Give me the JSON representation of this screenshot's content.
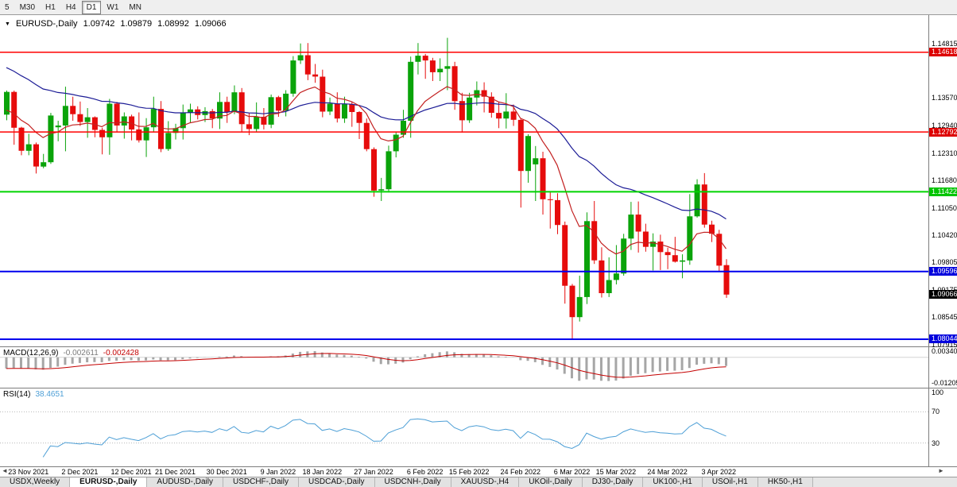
{
  "colors": {
    "bull": "#0aa30a",
    "bear": "#e60c0c",
    "ma_fast": "#c32222",
    "ma_slow": "#1c1c96",
    "macd_hist": "#a6a6a6",
    "macd_signal": "#c40000",
    "rsi_line": "#4d9fd6",
    "hline_red": "#ff0000",
    "hline_green": "#00d400",
    "hline_blue": "#0000ee",
    "current_price_bg": "#000000"
  },
  "toolbar": {
    "buttons": [
      {
        "label": "5",
        "active": false
      },
      {
        "label": "M30",
        "active": false
      },
      {
        "label": "H1",
        "active": false
      },
      {
        "label": "H4",
        "active": false
      },
      {
        "label": "D1",
        "active": true
      },
      {
        "label": "W1",
        "active": false
      },
      {
        "label": "MN",
        "active": false
      }
    ]
  },
  "chart_header": {
    "collapse_icon": "▼",
    "symbol_label": "EURUSD-,Daily",
    "open": "1.09742",
    "high": "1.09879",
    "low": "1.08992",
    "close": "1.09066"
  },
  "price_axis": {
    "ticks": [
      "1.14815",
      "1.13570",
      "1.12940",
      "1.12310",
      "1.11680",
      "1.11050",
      "1.10420",
      "1.09805",
      "1.09175",
      "1.08545",
      "1.07915"
    ],
    "line_labels": [
      {
        "text": "1.14618",
        "bg": "#dd0000"
      },
      {
        "text": "1.12792",
        "bg": "#dd0000"
      },
      {
        "text": "1.11422",
        "bg": "#00c400"
      },
      {
        "text": "1.09596",
        "bg": "#0000dd"
      },
      {
        "text": "1.09066",
        "bg": "#000000"
      },
      {
        "text": "1.08044",
        "bg": "#0000dd"
      }
    ]
  },
  "indicators": {
    "macd": {
      "label": "MACD(12,26,9)",
      "value_main": "-0.002611",
      "value_signal": "-0.002428",
      "axis": [
        "0.00340",
        "-0.01205"
      ]
    },
    "rsi": {
      "label": "RSI(14)",
      "value": "38.4651",
      "axis": [
        "100",
        "70",
        "30"
      ]
    }
  },
  "date_axis": {
    "labels": [
      {
        "text": "23 Nov 2021",
        "i": 3
      },
      {
        "text": "2 Dec 2021",
        "i": 10
      },
      {
        "text": "12 Dec 2021",
        "i": 17
      },
      {
        "text": "21 Dec 2021",
        "i": 23
      },
      {
        "text": "30 Dec 2021",
        "i": 30
      },
      {
        "text": "9 Jan 2022",
        "i": 37
      },
      {
        "text": "18 Jan 2022",
        "i": 43
      },
      {
        "text": "27 Jan 2022",
        "i": 50
      },
      {
        "text": "6 Feb 2022",
        "i": 57
      },
      {
        "text": "15 Feb 2022",
        "i": 63
      },
      {
        "text": "24 Feb 2022",
        "i": 70
      },
      {
        "text": "6 Mar 2022",
        "i": 77
      },
      {
        "text": "15 Mar 2022",
        "i": 83
      },
      {
        "text": "24 Mar 2022",
        "i": 90
      },
      {
        "text": "3 Apr 2022",
        "i": 97
      }
    ],
    "scroll_left": "◄",
    "scroll_right": "►"
  },
  "tabs": [
    {
      "label": "USDX,Weekly",
      "active": false
    },
    {
      "label": "EURUSD-,Daily",
      "active": true
    },
    {
      "label": "AUDUSD-,Daily",
      "active": false
    },
    {
      "label": "USDCHF-,Daily",
      "active": false
    },
    {
      "label": "USDCAD-,Daily",
      "active": false
    },
    {
      "label": "USDCNH-,Daily",
      "active": false
    },
    {
      "label": "XAUUSD-,H4",
      "active": false
    },
    {
      "label": "UKOil-,Daily",
      "active": false
    },
    {
      "label": "DJ30-,Daily",
      "active": false
    },
    {
      "label": "UK100-,H1",
      "active": false
    },
    {
      "label": "USOil-,H1",
      "active": false
    },
    {
      "label": "HK50-,H1",
      "active": false
    }
  ],
  "chart_data": {
    "type": "candlestick",
    "symbol": "EURUSD",
    "timeframe": "Daily",
    "title": "EURUSD-,Daily  1.09742 1.09879 1.08992 1.09066",
    "y_range": [
      1.0788,
      1.1547
    ],
    "x_start": 8,
    "x_spacing": 9.24,
    "current_price": 1.09066,
    "hlines": [
      {
        "price": 1.14618,
        "color": "#ff0000",
        "width": 1.5
      },
      {
        "price": 1.12792,
        "color": "#ff0000",
        "width": 1.5
      },
      {
        "price": 1.11422,
        "color": "#00d400",
        "width": 2
      },
      {
        "price": 1.09596,
        "color": "#0000ee",
        "width": 2
      },
      {
        "price": 1.08044,
        "color": "#0000ee",
        "width": 2
      }
    ],
    "ma": {
      "fast": {
        "type": "EMA",
        "period": 10,
        "seed": 1.132
      },
      "slow": {
        "type": "EMA",
        "period": 34,
        "seed": 1.143
      }
    },
    "macd": {
      "fast": 12,
      "slow": 26,
      "signal": 9,
      "range": [
        -0.0135,
        0.0045
      ],
      "seed_fast": 1.13,
      "seed_slow": 1.136,
      "last_main": -0.002611,
      "last_signal": -0.002428
    },
    "rsi": {
      "period": 14,
      "range": [
        0,
        100
      ],
      "levels": [
        70,
        30
      ],
      "last": 38.4651
    },
    "ohlc": [
      [
        1.1319,
        1.1374,
        1.1306,
        1.1371
      ],
      [
        1.1371,
        1.1374,
        1.125,
        1.1289
      ],
      [
        1.1289,
        1.1291,
        1.1226,
        1.1236
      ],
      [
        1.1236,
        1.1275,
        1.1226,
        1.1251
      ],
      [
        1.1251,
        1.1255,
        1.1184,
        1.12
      ],
      [
        1.12,
        1.1229,
        1.1196,
        1.121
      ],
      [
        1.121,
        1.1323,
        1.1206,
        1.1317
      ],
      [
        1.129,
        1.1305,
        1.1258,
        1.1294
      ],
      [
        1.1294,
        1.1383,
        1.1235,
        1.1339
      ],
      [
        1.1339,
        1.136,
        1.1305,
        1.132
      ],
      [
        1.132,
        1.1349,
        1.1293,
        1.1302
      ],
      [
        1.1302,
        1.1334,
        1.1266,
        1.1313
      ],
      [
        1.1313,
        1.1315,
        1.1267,
        1.1284
      ],
      [
        1.1284,
        1.1289,
        1.1228,
        1.1267
      ],
      [
        1.1267,
        1.1355,
        1.1227,
        1.1344
      ],
      [
        1.1344,
        1.1348,
        1.128,
        1.1294
      ],
      [
        1.1294,
        1.1324,
        1.1264,
        1.1315
      ],
      [
        1.1315,
        1.1319,
        1.126,
        1.1285
      ],
      [
        1.1285,
        1.1324,
        1.1255,
        1.126
      ],
      [
        1.126,
        1.1311,
        1.1222,
        1.129
      ],
      [
        1.129,
        1.136,
        1.128,
        1.1332
      ],
      [
        1.1332,
        1.135,
        1.1233,
        1.124
      ],
      [
        1.124,
        1.1304,
        1.1236,
        1.1277
      ],
      [
        1.1277,
        1.1298,
        1.1262,
        1.1288
      ],
      [
        1.1288,
        1.1342,
        1.1262,
        1.1324
      ],
      [
        1.1324,
        1.1344,
        1.13,
        1.1331
      ],
      [
        1.1331,
        1.1338,
        1.1308,
        1.1318
      ],
      [
        1.1318,
        1.1336,
        1.1302,
        1.1327
      ],
      [
        1.1327,
        1.1332,
        1.1288,
        1.131
      ],
      [
        1.131,
        1.137,
        1.1286,
        1.1348
      ],
      [
        1.1348,
        1.136,
        1.13,
        1.1325
      ],
      [
        1.1325,
        1.1386,
        1.132,
        1.137
      ],
      [
        1.137,
        1.138,
        1.1279,
        1.1297
      ],
      [
        1.1297,
        1.1323,
        1.1272,
        1.1286
      ],
      [
        1.1286,
        1.1347,
        1.128,
        1.1314
      ],
      [
        1.1314,
        1.1334,
        1.1285,
        1.1296
      ],
      [
        1.1296,
        1.1365,
        1.1288,
        1.1359
      ],
      [
        1.1359,
        1.1362,
        1.1314,
        1.1328
      ],
      [
        1.1328,
        1.1375,
        1.1315,
        1.1367
      ],
      [
        1.1367,
        1.1453,
        1.136,
        1.1443
      ],
      [
        1.1443,
        1.1482,
        1.1435,
        1.1455
      ],
      [
        1.1455,
        1.1483,
        1.1398,
        1.1411
      ],
      [
        1.1411,
        1.1435,
        1.1392,
        1.1406
      ],
      [
        1.1406,
        1.1422,
        1.1313,
        1.1326
      ],
      [
        1.1326,
        1.1358,
        1.1318,
        1.1344
      ],
      [
        1.1344,
        1.137,
        1.1301,
        1.131
      ],
      [
        1.131,
        1.136,
        1.13,
        1.1343
      ],
      [
        1.1343,
        1.1349,
        1.1291,
        1.1325
      ],
      [
        1.1325,
        1.1327,
        1.1263,
        1.13
      ],
      [
        1.13,
        1.131,
        1.1235,
        1.124
      ],
      [
        1.124,
        1.1244,
        1.1131,
        1.1145
      ],
      [
        1.1145,
        1.1174,
        1.1121,
        1.1148
      ],
      [
        1.1148,
        1.1248,
        1.1141,
        1.1235
      ],
      [
        1.1235,
        1.1279,
        1.1221,
        1.1273
      ],
      [
        1.1273,
        1.133,
        1.1266,
        1.1305
      ],
      [
        1.1305,
        1.1452,
        1.1266,
        1.144
      ],
      [
        1.144,
        1.1483,
        1.1411,
        1.1454
      ],
      [
        1.1454,
        1.1458,
        1.1401,
        1.1443
      ],
      [
        1.1443,
        1.1449,
        1.1396,
        1.1416
      ],
      [
        1.1416,
        1.1448,
        1.1396,
        1.1424
      ],
      [
        1.1424,
        1.1495,
        1.1375,
        1.143
      ],
      [
        1.143,
        1.144,
        1.133,
        1.135
      ],
      [
        1.135,
        1.1369,
        1.1278,
        1.1306
      ],
      [
        1.1306,
        1.1369,
        1.13,
        1.1358
      ],
      [
        1.1358,
        1.1395,
        1.134,
        1.1375
      ],
      [
        1.1375,
        1.1393,
        1.1324,
        1.136
      ],
      [
        1.136,
        1.137,
        1.1312,
        1.1323
      ],
      [
        1.1323,
        1.1348,
        1.1288,
        1.131
      ],
      [
        1.131,
        1.1368,
        1.1287,
        1.1326
      ],
      [
        1.1326,
        1.1342,
        1.1293,
        1.1307
      ],
      [
        1.1307,
        1.131,
        1.1106,
        1.119
      ],
      [
        1.119,
        1.1274,
        1.1163,
        1.127
      ],
      [
        1.1205,
        1.1247,
        1.1121,
        1.1219
      ],
      [
        1.1219,
        1.1234,
        1.109,
        1.1125
      ],
      [
        1.1125,
        1.1143,
        1.1058,
        1.1123
      ],
      [
        1.1123,
        1.1139,
        1.1045,
        1.1066
      ],
      [
        1.1066,
        1.1074,
        1.0886,
        1.0927
      ],
      [
        1.0927,
        1.0931,
        1.0806,
        1.0855
      ],
      [
        1.0855,
        1.095,
        1.0845,
        1.0901
      ],
      [
        1.0901,
        1.1095,
        1.0885,
        1.1075
      ],
      [
        1.1075,
        1.1121,
        1.0977,
        1.0985
      ],
      [
        1.0985,
        1.1015,
        1.09,
        1.091
      ],
      [
        1.091,
        1.0992,
        1.0901,
        1.094
      ],
      [
        1.094,
        1.102,
        1.093,
        1.0955
      ],
      [
        1.0955,
        1.1046,
        1.095,
        1.1035
      ],
      [
        1.1035,
        1.1119,
        1.1009,
        1.109
      ],
      [
        1.109,
        1.112,
        1.1003,
        1.1051
      ],
      [
        1.1051,
        1.1069,
        1.1005,
        1.1016
      ],
      [
        1.1016,
        1.1047,
        1.0962,
        1.1028
      ],
      [
        1.1028,
        1.1044,
        1.0963,
        1.1004
      ],
      [
        1.1004,
        1.1014,
        1.0965,
        1.0997
      ],
      [
        1.0997,
        1.1039,
        1.098,
        1.0982
      ],
      [
        1.0982,
        1.0999,
        1.0944,
        1.0985
      ],
      [
        1.0985,
        1.1137,
        1.0975,
        1.1086
      ],
      [
        1.1086,
        1.1171,
        1.1083,
        1.1159
      ],
      [
        1.1159,
        1.1185,
        1.106,
        1.1067
      ],
      [
        1.1067,
        1.1076,
        1.1027,
        1.1046
      ],
      [
        1.1046,
        1.1055,
        1.0961,
        1.0973
      ],
      [
        1.09742,
        1.09879,
        1.08992,
        1.09066
      ]
    ]
  }
}
